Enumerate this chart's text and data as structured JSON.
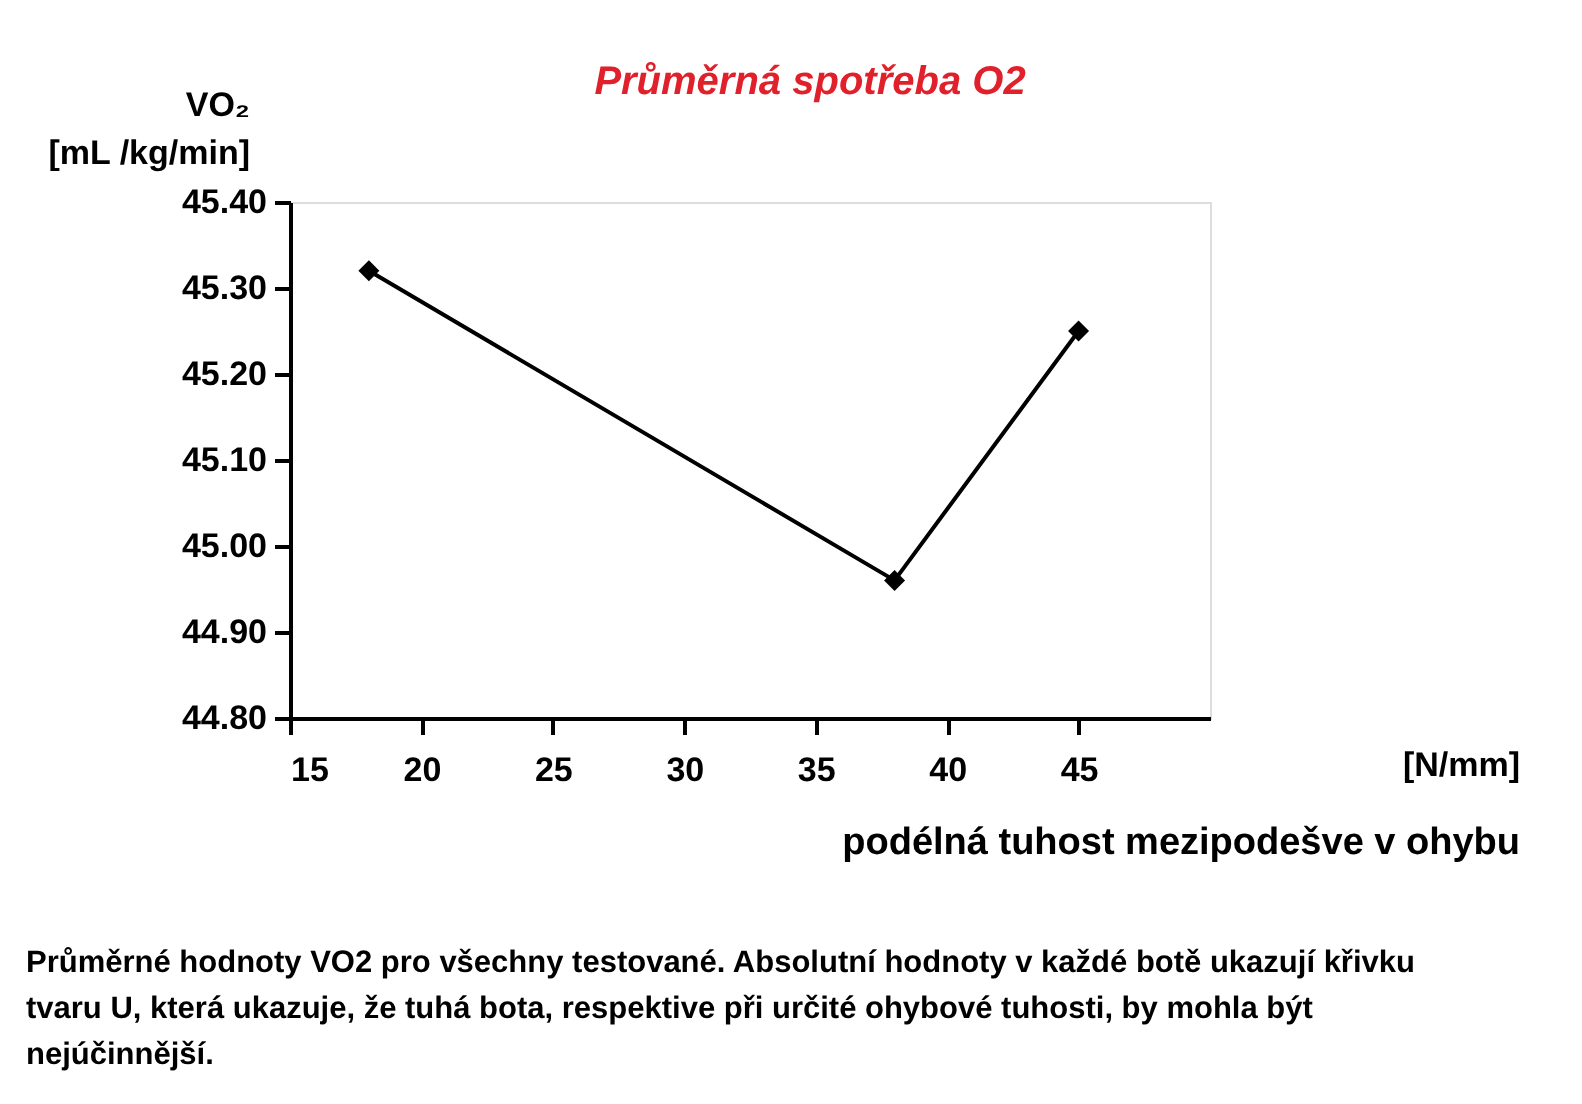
{
  "chart_data": {
    "type": "line",
    "title": "Průměrná spotřeba O2",
    "xlabel": "podélná tuhost mezipodešve v ohybu",
    "ylabel": "VO₂ [mL /kg/min]",
    "x": [
      18,
      38,
      45
    ],
    "series": [
      {
        "color": "#000000",
        "values": [
          45.32,
          44.96,
          45.25
        ]
      }
    ],
    "xlim": [
      15,
      50
    ],
    "xticks": [
      15,
      20,
      25,
      30,
      35,
      40,
      45
    ],
    "ylim": [
      44.8,
      45.4
    ],
    "yticks": [
      {
        "value": 44.8,
        "label": "44.80"
      },
      {
        "value": 44.9,
        "label": "44.90"
      },
      {
        "value": 45.0,
        "label": "45.00"
      },
      {
        "value": 45.1,
        "label": "45.10"
      },
      {
        "value": 45.2,
        "label": "45.20"
      },
      {
        "value": 45.3,
        "label": "45.30"
      },
      {
        "value": 45.4,
        "label": "45.40"
      }
    ],
    "marker": "diamond",
    "line_style": "solid",
    "grid": false,
    "annotations": [
      "[N/mm]",
      "Průměrné hodnoty VO2 pro všechny testované. Absolutní hodnoty v každé botě ukazují křivku tvaru U, která ukazuje, že tuhá bota, respektive při určité ohybové tuhosti, by mohla být nejúčinnější."
    ]
  }
}
